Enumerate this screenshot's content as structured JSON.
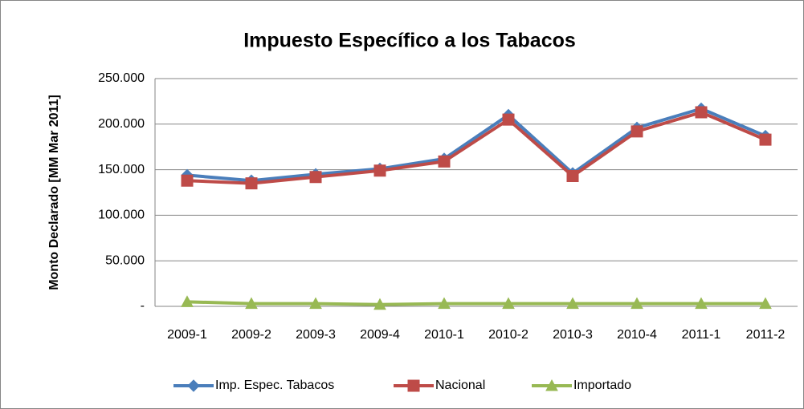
{
  "chart_data": {
    "type": "line",
    "title": "Impuesto Específico a los Tabacos",
    "y_label": "Monto Declarado  [MM  Mar 2011]",
    "categories": [
      "2009-1",
      "2009-2",
      "2009-3",
      "2009-4",
      "2010-1",
      "2010-2",
      "2010-3",
      "2010-4",
      "2011-1",
      "2011-2"
    ],
    "series": [
      {
        "name": "Imp. Espec. Tabacos",
        "color": "#4a7ebb",
        "marker": "diamond",
        "values": [
          144000,
          138000,
          145000,
          151000,
          162000,
          210000,
          146000,
          196000,
          217000,
          187000
        ]
      },
      {
        "name": "Nacional",
        "color": "#be4b48",
        "marker": "square",
        "values": [
          138000,
          135000,
          142000,
          149000,
          159000,
          205000,
          143000,
          192000,
          213000,
          183000
        ]
      },
      {
        "name": "Importado",
        "color": "#98b954",
        "marker": "triangle",
        "values": [
          5000,
          3000,
          3000,
          2000,
          3000,
          3000,
          3000,
          3000,
          3000,
          3000
        ]
      }
    ],
    "ylim": [
      0,
      250000
    ],
    "yticks": [
      {
        "value": 0,
        "label": "-"
      },
      {
        "value": 50000,
        "label": "50.000"
      },
      {
        "value": 100000,
        "label": "100.000"
      },
      {
        "value": 150000,
        "label": "150.000"
      },
      {
        "value": 200000,
        "label": "200.000"
      },
      {
        "value": 250000,
        "label": "250.000"
      }
    ],
    "grid": true,
    "legend": "bottom"
  }
}
